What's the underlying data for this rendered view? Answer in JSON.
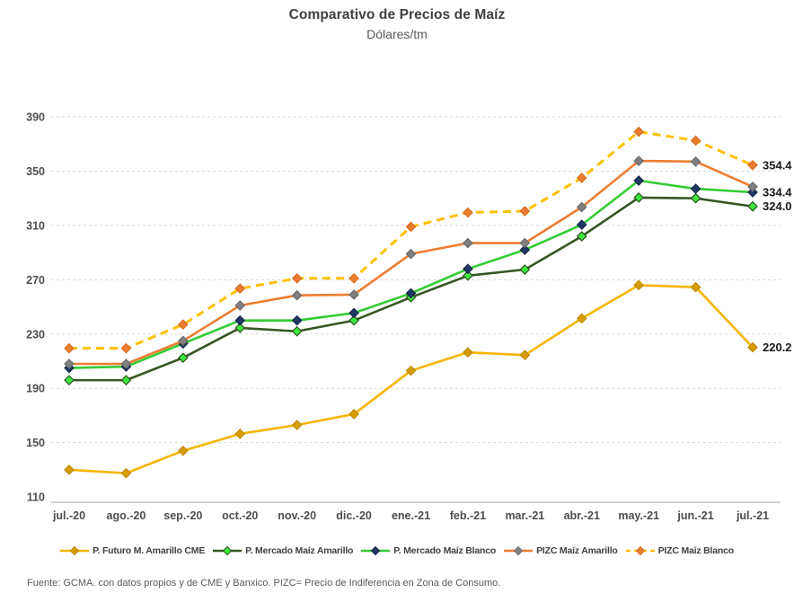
{
  "header": {
    "title": "Comparativo de Precios de Maíz",
    "subtitle": "Dólares/tm"
  },
  "footer": {
    "source": "Fuente: GCMA. con datos propios y de CME y Banxico. PIZC= Precio de Indiferencia en Zona de Consumo."
  },
  "chart_data": {
    "type": "line",
    "title": "Comparativo de Precios de Maíz",
    "subtitle": "Dólares/tm",
    "ylabel": "Dólares/tm",
    "xlabel": "",
    "ylim": [
      110,
      390
    ],
    "yticks": [
      110,
      150,
      190,
      230,
      270,
      310,
      350,
      390
    ],
    "grid": "horizontal-dashed",
    "grid_color": "#d9d9d9",
    "axis_color": "#bfbfbf",
    "tick_label_color": "#4d4d4d",
    "value_label_color": "#1a1a1a",
    "legend_position": "bottom",
    "categories": [
      "jul.-20",
      "ago.-20",
      "sep.-20",
      "oct.-20",
      "nov.-20",
      "dic.-20",
      "ene.-21",
      "feb.-21",
      "mar.-21",
      "abr.-21",
      "may.-21",
      "jun.-21",
      "jul.-21"
    ],
    "series": [
      {
        "name": "P. Futuro M. Amarillo CME",
        "color": "#f6b500",
        "marker_color": "#d79d00",
        "marker_stroke": "#bd8a00",
        "dash": null,
        "end_label": "220.2",
        "values": [
          130,
          127.5,
          144,
          156.5,
          163,
          171,
          203,
          216.5,
          214.5,
          241.5,
          266,
          264.5,
          220.2
        ]
      },
      {
        "name": "P. Mercado Maíz Amarillo",
        "color": "#375623",
        "marker_color": "#3de83d",
        "marker_stroke": "#2c511b",
        "dash": null,
        "end_label": "324.0",
        "values": [
          196,
          196,
          212.5,
          234.5,
          232,
          240,
          257,
          273,
          277.5,
          302,
          330.5,
          330,
          324.0
        ]
      },
      {
        "name": "P. Mercado Maíz Blanco",
        "color": "#33cc33",
        "marker_color": "#1f3864",
        "marker_stroke": "#17294a",
        "dash": null,
        "end_label": "334.4",
        "values": [
          205,
          206,
          223,
          240,
          240,
          245.5,
          260,
          278,
          292,
          310.5,
          343,
          337,
          334.4
        ]
      },
      {
        "name": "PIZC Maíz Amarillo",
        "color": "#ed7d31",
        "marker_color": "#808080",
        "marker_stroke": "#6b6b6b",
        "dash": null,
        "end_label": null,
        "values": [
          208,
          208,
          225,
          251,
          258.5,
          259,
          289,
          297,
          297,
          323.5,
          357.5,
          357,
          338.5
        ]
      },
      {
        "name": "PIZC Maíz Blanco",
        "color": "#ffc000",
        "marker_color": "#ed7d31",
        "marker_stroke": "#d86d20",
        "dash": "9 6",
        "end_label": "354.4",
        "values": [
          219.5,
          219.5,
          237,
          263.5,
          271,
          271,
          309,
          319.5,
          320.5,
          345,
          379,
          372.5,
          354.4
        ]
      }
    ]
  }
}
